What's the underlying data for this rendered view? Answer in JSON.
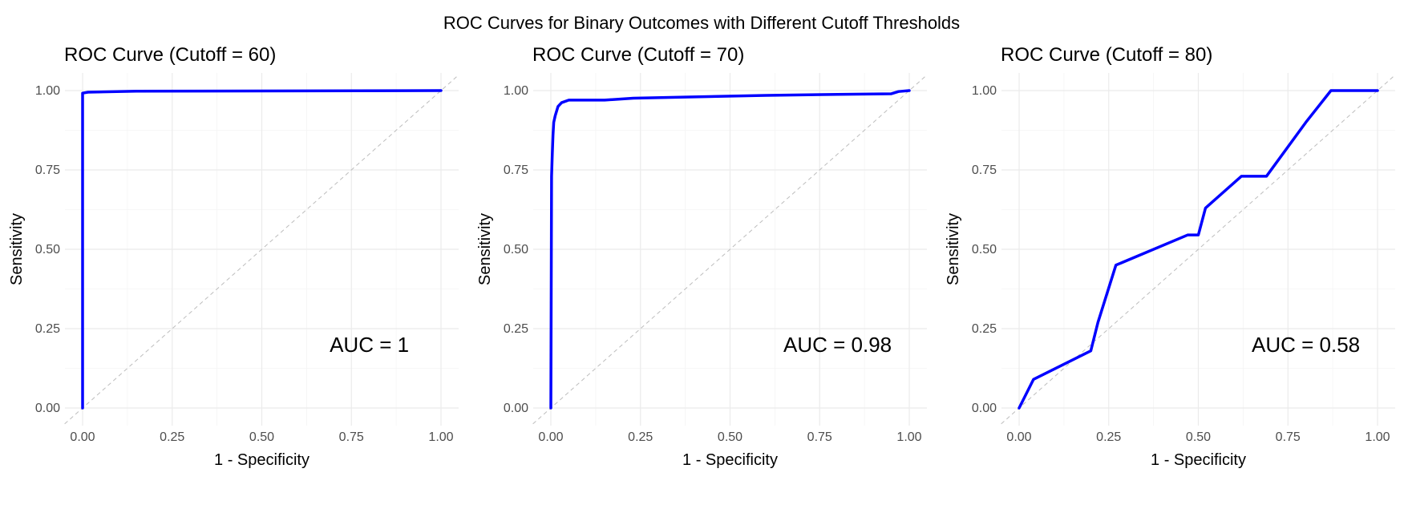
{
  "title": "ROC Curves for Binary Outcomes with Different Cutoff Thresholds",
  "colors": {
    "curve": "#0000ff",
    "diagonal": "#bdbdbd",
    "grid": "#ebebeb"
  },
  "chart_data": [
    {
      "type": "line",
      "title": "ROC Curve (Cutoff = 60)",
      "xlabel": "1 - Specificity",
      "ylabel": "Sensitivity",
      "xlim": [
        0,
        1
      ],
      "ylim": [
        0,
        1
      ],
      "xticks": [
        "0.00",
        "0.25",
        "0.50",
        "0.75",
        "1.00"
      ],
      "yticks": [
        "0.00",
        "0.25",
        "0.50",
        "0.75",
        "1.00"
      ],
      "grid": true,
      "annotation": "AUC = 1",
      "reference_line": "diagonal",
      "series": [
        {
          "x": [
            0.0,
            0.0,
            0.015,
            0.15,
            1.0
          ],
          "y": [
            0.0,
            0.992,
            0.995,
            0.998,
            1.0
          ]
        }
      ]
    },
    {
      "type": "line",
      "title": "ROC Curve (Cutoff = 70)",
      "xlabel": "1 - Specificity",
      "ylabel": "Sensitivity",
      "xlim": [
        0,
        1
      ],
      "ylim": [
        0,
        1
      ],
      "xticks": [
        "0.00",
        "0.25",
        "0.50",
        "0.75",
        "1.00"
      ],
      "yticks": [
        "0.00",
        "0.25",
        "0.50",
        "0.75",
        "1.00"
      ],
      "grid": true,
      "annotation": "AUC = 0.98",
      "reference_line": "diagonal",
      "series": [
        {
          "x": [
            0.0,
            0.002,
            0.004,
            0.006,
            0.008,
            0.012,
            0.02,
            0.03,
            0.05,
            0.15,
            0.23,
            0.4,
            0.6,
            0.8,
            0.95,
            0.97,
            1.0
          ],
          "y": [
            0.0,
            0.73,
            0.8,
            0.86,
            0.9,
            0.92,
            0.95,
            0.962,
            0.97,
            0.97,
            0.976,
            0.98,
            0.985,
            0.988,
            0.99,
            0.997,
            1.0
          ]
        }
      ]
    },
    {
      "type": "line",
      "title": "ROC Curve (Cutoff = 80)",
      "xlabel": "1 - Specificity",
      "ylabel": "Sensitivity",
      "xlim": [
        0,
        1
      ],
      "ylim": [
        0,
        1
      ],
      "xticks": [
        "0.00",
        "0.25",
        "0.50",
        "0.75",
        "1.00"
      ],
      "yticks": [
        "0.00",
        "0.25",
        "0.50",
        "0.75",
        "1.00"
      ],
      "grid": true,
      "annotation": "AUC = 0.58",
      "reference_line": "diagonal",
      "series": [
        {
          "x": [
            0.0,
            0.04,
            0.2,
            0.22,
            0.27,
            0.47,
            0.5,
            0.52,
            0.62,
            0.69,
            0.8,
            0.87,
            1.0
          ],
          "y": [
            0.0,
            0.09,
            0.18,
            0.27,
            0.45,
            0.545,
            0.545,
            0.63,
            0.73,
            0.73,
            0.9,
            1.0,
            1.0
          ]
        }
      ]
    }
  ]
}
